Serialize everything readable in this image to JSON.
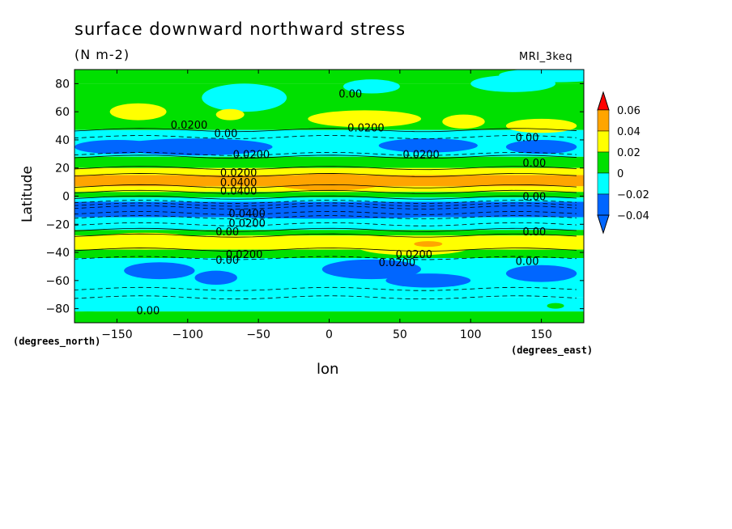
{
  "title": "surface downward northward stress",
  "units": "(N m-2)",
  "model": "MRI_3keq",
  "ylabel": "Latitude",
  "xlabel": "lon",
  "ylabel_units": "(degrees_north)",
  "xlabel_units": "(degrees_east)",
  "chart_data": {
    "type": "heatmap",
    "title": "surface downward northward stress",
    "subtitle": "(N m-2)",
    "xlabel": "lon",
    "ylabel": "Latitude",
    "xlim": [
      -180,
      180
    ],
    "ylim": [
      -90,
      90
    ],
    "x_ticks": [
      -150,
      -100,
      -50,
      0,
      50,
      100,
      150
    ],
    "y_ticks": [
      -80,
      -60,
      -40,
      -20,
      0,
      20,
      40,
      60,
      80
    ],
    "colorbar": {
      "levels": [
        -0.04,
        -0.02,
        0,
        0.02,
        0.04,
        0.06
      ],
      "tick_labels": [
        "0.06",
        "0.04",
        "0.02",
        "0",
        "-0.02",
        "-0.04"
      ],
      "colors": [
        "#0066ff",
        "#00ffff",
        "#00e000",
        "#ffff00",
        "#ffa500",
        "#ff0000"
      ]
    },
    "contour_labels": [
      {
        "text": "0.00",
        "x": 15,
        "y": 73
      },
      {
        "text": "0.0200",
        "x": -99,
        "y": 51
      },
      {
        "text": "0.00",
        "x": -73,
        "y": 45
      },
      {
        "text": "0.0200",
        "x": 26,
        "y": 49
      },
      {
        "text": "0.00",
        "x": 140,
        "y": 42
      },
      {
        "text": "0.0200",
        "x": -55,
        "y": 30
      },
      {
        "text": "0.0200",
        "x": 65,
        "y": 30
      },
      {
        "text": "0.00",
        "x": 145,
        "y": 24
      },
      {
        "text": "0.0200",
        "x": -64,
        "y": 17
      },
      {
        "text": "0.0400",
        "x": -64,
        "y": 10
      },
      {
        "text": "0.0400",
        "x": -64,
        "y": 4
      },
      {
        "text": "0.00",
        "x": 145,
        "y": 0
      },
      {
        "text": "0.0400",
        "x": -58,
        "y": -12
      },
      {
        "text": "0.0200",
        "x": -58,
        "y": -19
      },
      {
        "text": "0.00",
        "x": -72,
        "y": -25
      },
      {
        "text": "0.00",
        "x": 145,
        "y": -25
      },
      {
        "text": "0.0200",
        "x": -60,
        "y": -41
      },
      {
        "text": "0.0200",
        "x": 60,
        "y": -41
      },
      {
        "text": "0.0200",
        "x": 48,
        "y": -47
      },
      {
        "text": "0.00",
        "x": -72,
        "y": -45
      },
      {
        "text": "0.00",
        "x": 140,
        "y": -46
      },
      {
        "text": "0.00",
        "x": -128,
        "y": -81
      }
    ]
  }
}
